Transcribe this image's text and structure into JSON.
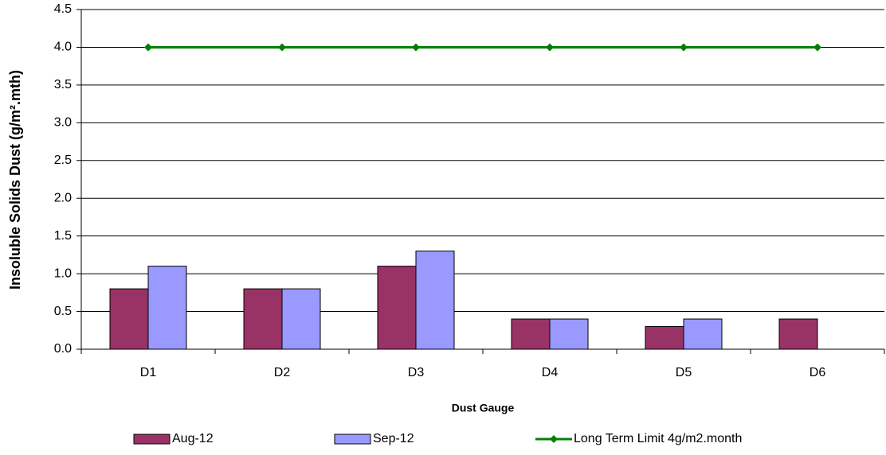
{
  "chart_data": {
    "type": "bar",
    "y_label": "Insoluble Solids Dust (g/m².mth)",
    "x_label": "Dust Gauge",
    "categories": [
      "D1",
      "D2",
      "D3",
      "D4",
      "D5",
      "D6"
    ],
    "series": [
      {
        "name": "Aug-12",
        "type": "bar",
        "color": "#993366",
        "values": [
          0.8,
          0.8,
          1.1,
          0.4,
          0.3,
          0.4
        ]
      },
      {
        "name": "Sep-12",
        "type": "bar",
        "color": "#9999ff",
        "values": [
          1.1,
          0.8,
          1.3,
          0.4,
          0.4,
          null
        ]
      },
      {
        "name": "Long Term Limit 4g/m2.month",
        "type": "line",
        "color": "#008000",
        "values": [
          4,
          4,
          4,
          4,
          4,
          4
        ]
      }
    ],
    "ylim": [
      0,
      4.5
    ],
    "yticks": [
      {
        "value": 0,
        "label": "0.0"
      },
      0.5,
      {
        "value": 1,
        "label": "1.0"
      },
      1.5,
      {
        "value": 2,
        "label": "2.0"
      },
      2.5,
      {
        "value": 3,
        "label": "3.0"
      },
      3.5,
      {
        "value": 4,
        "label": "4.0"
      },
      4.5
    ],
    "grid": true,
    "legend": "bottom"
  }
}
